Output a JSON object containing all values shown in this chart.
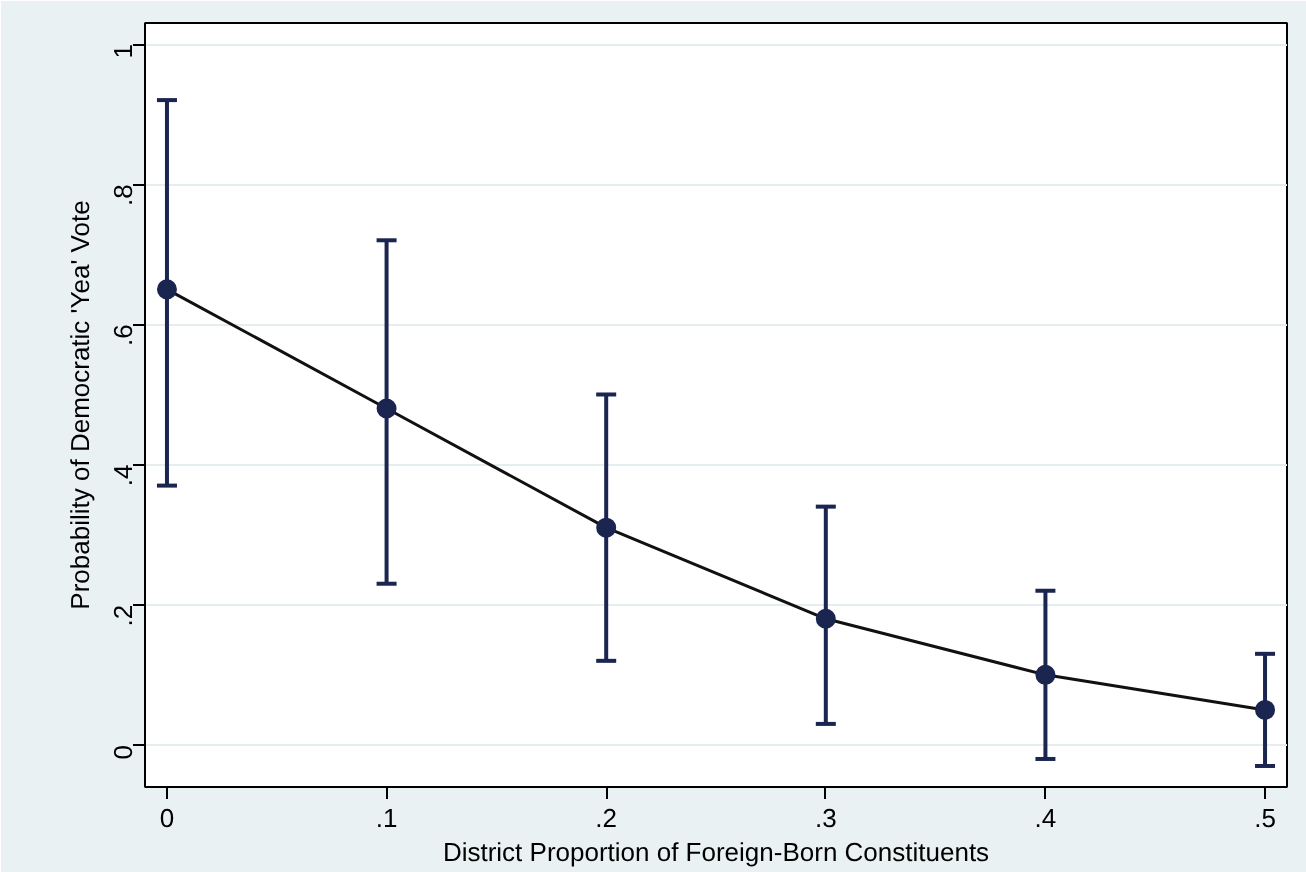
{
  "chart_data": {
    "type": "line",
    "xlabel": "District Proportion of Foreign-Born Constituents",
    "ylabel": "Probability of Democratic 'Yea' Vote",
    "x": [
      0,
      0.1,
      0.2,
      0.3,
      0.4,
      0.5
    ],
    "series": [
      {
        "color": "#1a2550",
        "values": [
          0.65,
          0.48,
          0.31,
          0.18,
          0.1,
          0.05
        ],
        "errors": [
          [
            0.37,
            0.92
          ],
          [
            0.23,
            0.72
          ],
          [
            0.12,
            0.5
          ],
          [
            0.03,
            0.34
          ],
          [
            -0.02,
            0.22
          ],
          [
            -0.03,
            0.13
          ]
        ]
      }
    ],
    "xlim": [
      -0.01,
      0.51
    ],
    "ylim": [
      -0.06,
      1.03
    ],
    "xticks": [
      0,
      {
        "value": 0.1,
        "label": ".1"
      },
      {
        "value": 0.2,
        "label": ".2"
      },
      {
        "value": 0.3,
        "label": ".3"
      },
      {
        "value": 0.4,
        "label": ".4"
      },
      {
        "value": 0.5,
        "label": ".5"
      }
    ],
    "yticks": [
      0,
      {
        "value": 0.2,
        "label": ".2"
      },
      {
        "value": 0.4,
        "label": ".4"
      },
      {
        "value": 0.6,
        "label": ".6"
      },
      {
        "value": 0.8,
        "label": ".8"
      },
      1
    ],
    "grid": "y",
    "marker": "circle",
    "line_style": "solid"
  }
}
